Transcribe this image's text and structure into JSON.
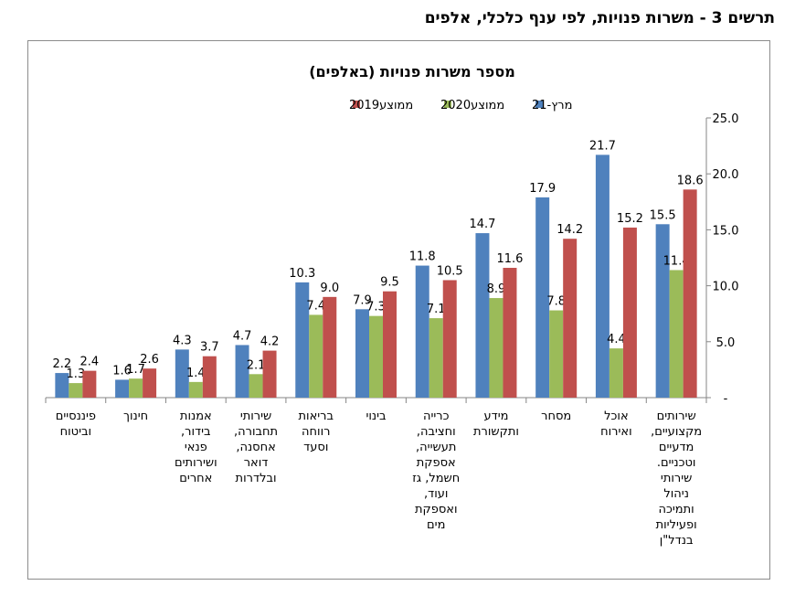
{
  "figure_title": "תרשים 3 - משרות פנויות, לפי ענף כלכלי, אלפים",
  "chart_data": {
    "type": "bar",
    "title": "מספר משרות פנויות (באלפים)",
    "categories": [
      [
        "שירותים",
        "מקצועיים,",
        "מדעיים",
        "וטכניים.",
        "שירותי",
        "ניהול",
        "ותמיכה",
        "ופעיליות",
        "בנדל\"ן"
      ],
      [
        "אוכל",
        "ואירוח"
      ],
      [
        "מסחר"
      ],
      [
        "מידע",
        "ותקשורת"
      ],
      [
        "כרייה",
        "וחציבה,",
        "תעשייה,",
        "אספקת",
        "חשמל, גז",
        "ועוד,",
        "ואספקת",
        "מים"
      ],
      [
        "בינוי"
      ],
      [
        "בריאות",
        "רווחה",
        "וסעד"
      ],
      [
        "שירותי",
        "תחבורה,",
        "אחסנה,",
        "דואר",
        "ובלדרות"
      ],
      [
        "אמנות",
        "בידור,",
        "פנאי",
        "ושירותים",
        "אחרים"
      ],
      [
        "חינוך"
      ],
      [
        "פיננסיים",
        "וביטוח"
      ]
    ],
    "series": [
      {
        "name": "ממוצע2019",
        "color": "#c0504d",
        "values": [
          18.6,
          15.2,
          14.2,
          11.6,
          10.5,
          9.5,
          9.0,
          4.2,
          3.7,
          2.6,
          2.4
        ],
        "labels": [
          "18.6",
          "15.2",
          "14.2",
          "11.6",
          "10.5",
          "9.5",
          "9.0",
          "4.2",
          "3.7",
          "2.6",
          "2.4"
        ]
      },
      {
        "name": "ממוצע2020",
        "color": "#9bbb59",
        "values": [
          11.4,
          4.4,
          7.8,
          8.9,
          7.1,
          7.3,
          7.4,
          2.1,
          1.4,
          1.7,
          1.3
        ],
        "labels": [
          "11.4",
          "4.4",
          "7.8",
          "8.9",
          "7.1",
          "7.3",
          "7.4",
          "2.1",
          "1.4",
          "1.7",
          "1.3"
        ]
      },
      {
        "name": "מרץ-21",
        "color": "#4f81bd",
        "values": [
          15.5,
          21.7,
          17.9,
          14.7,
          11.8,
          7.9,
          10.3,
          4.7,
          4.3,
          1.6,
          2.2
        ],
        "labels": [
          "15.5",
          "21.7",
          "17.9",
          "14.7",
          "11.8",
          "7.9",
          "10.3",
          "4.7",
          "4.3",
          "1.6",
          "2.2"
        ]
      }
    ],
    "legend_order": [
      2,
      1,
      0
    ],
    "ylim": [
      0,
      25
    ],
    "yticks": [
      0,
      5,
      10,
      15,
      20,
      25
    ],
    "ytick_labels": [
      "-",
      "5.0",
      "10.0",
      "15.0",
      "20.0",
      "25.0"
    ],
    "y_axis_side": "right",
    "legend_position": "top-center",
    "grid": false
  }
}
